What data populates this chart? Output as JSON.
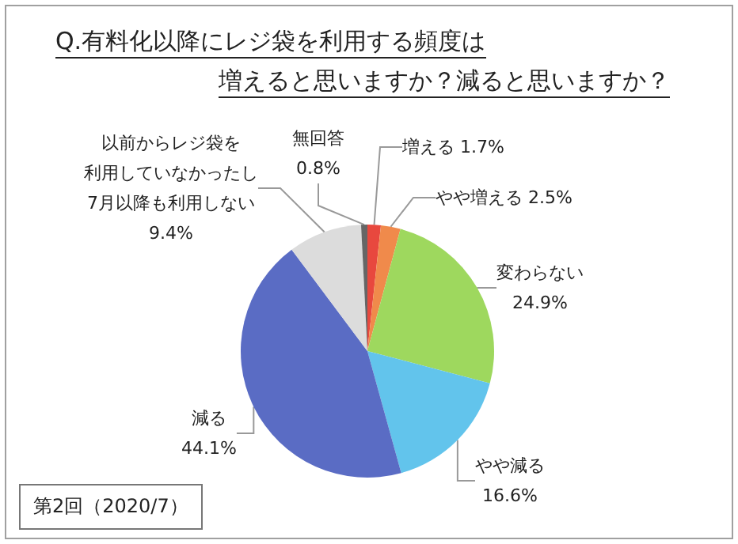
{
  "chart_data": {
    "type": "pie",
    "title": "Q.有料化以降にレジ袋を利用する頻度は増えると思いますか？減ると思いますか？",
    "categories": [
      "増える",
      "やや増える",
      "変わらない",
      "やや減る",
      "減る",
      "以前からレジ袋を利用していなかったし7月以降も利用しない",
      "無回答"
    ],
    "values": [
      1.7,
      2.5,
      24.9,
      16.6,
      44.1,
      9.4,
      0.8
    ],
    "value_labels": [
      "1.7%",
      "2.5%",
      "24.9%",
      "16.6%",
      "44.1%",
      "9.4%",
      "0.8%"
    ],
    "colors": [
      "#e8483e",
      "#f08a4b",
      "#9ed85e",
      "#62c4ec",
      "#5a6cc4",
      "#dcdcdc",
      "#666666"
    ],
    "annotations": [
      "第2回（2020/7）"
    ],
    "legend": false
  }
}
